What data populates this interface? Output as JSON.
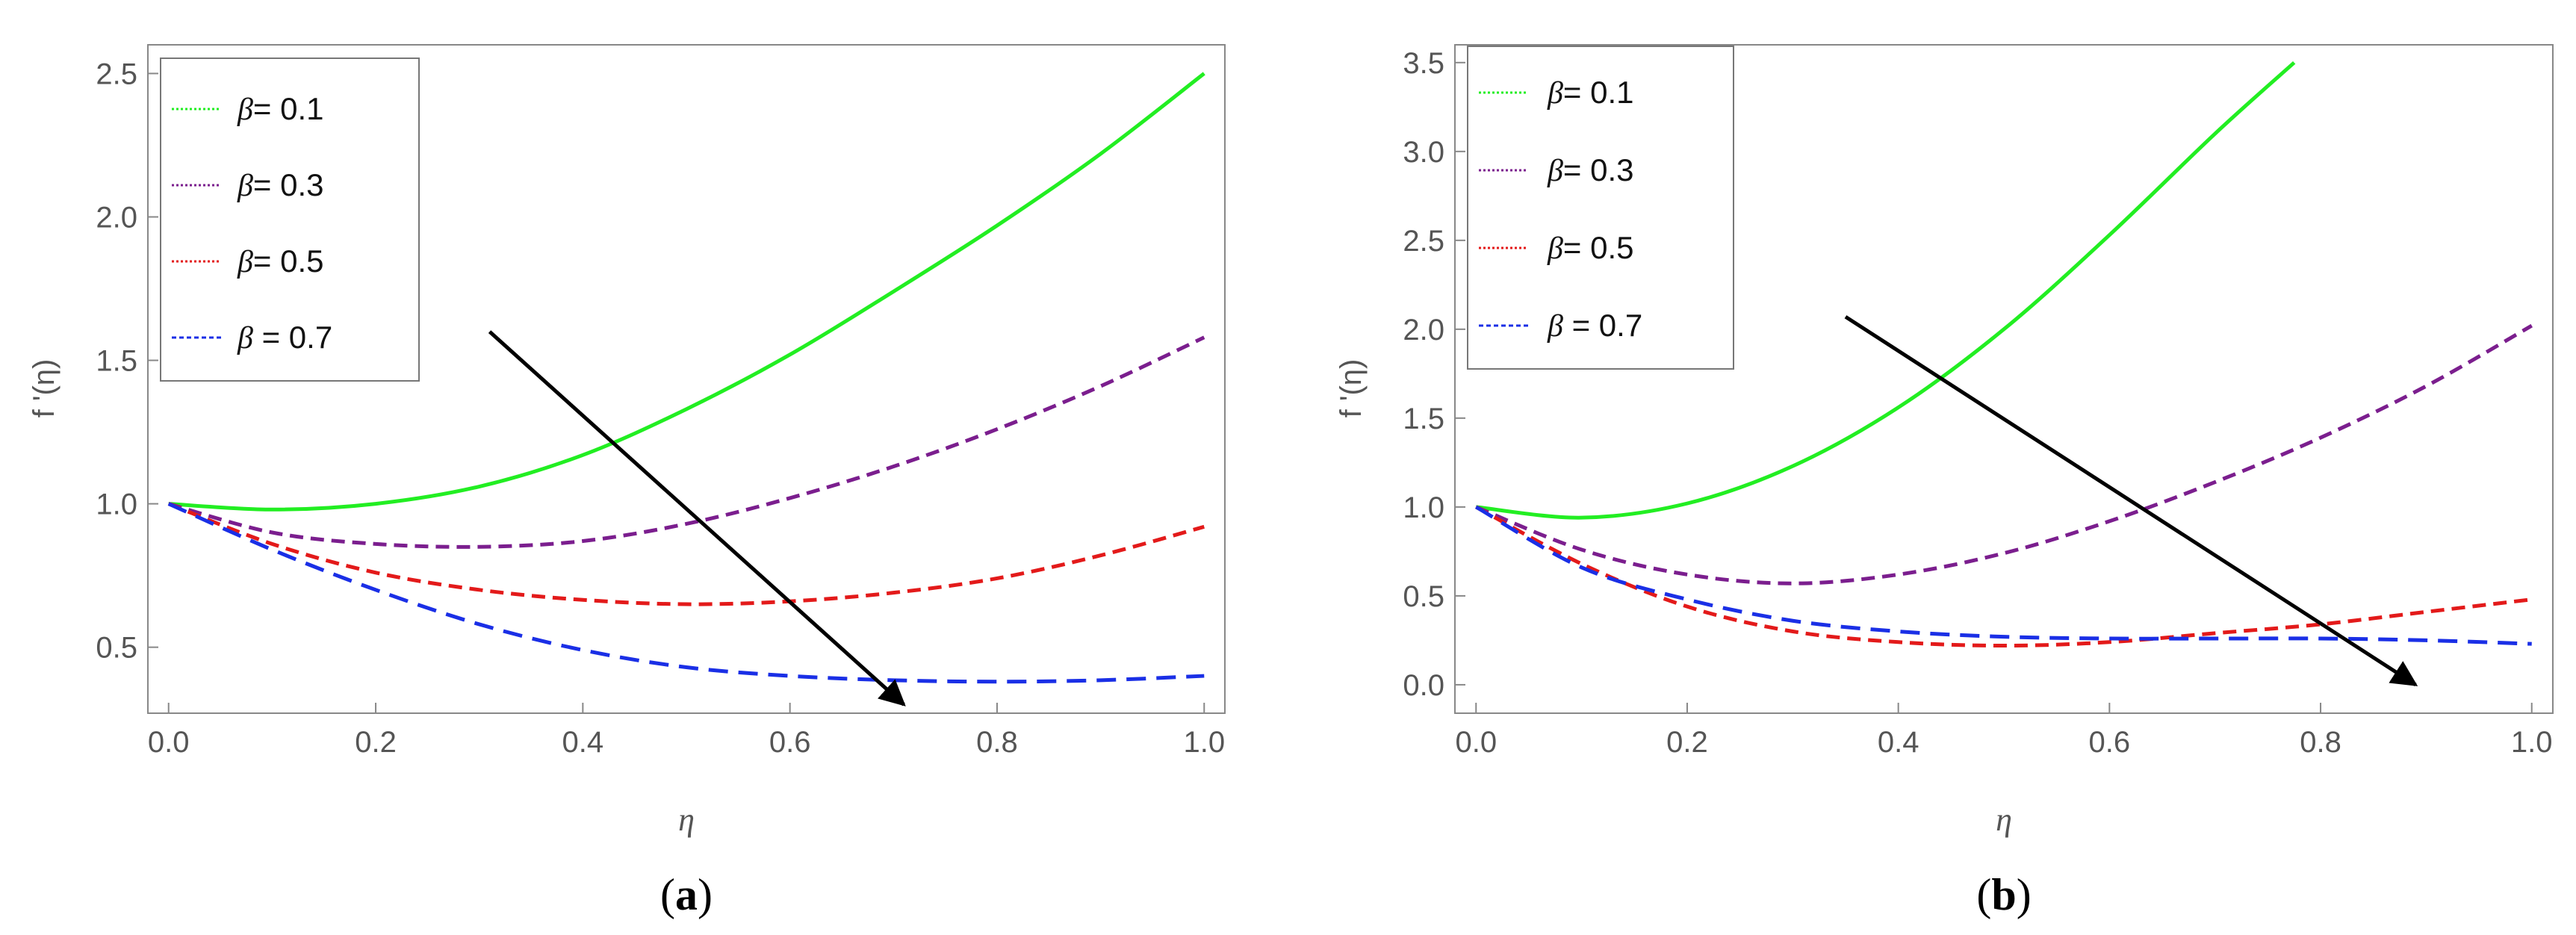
{
  "chart_data": [
    {
      "type": "line",
      "panel_label": "a",
      "xlabel": "η",
      "ylabel": "f '(η)",
      "xlim": [
        -0.02,
        1.02
      ],
      "ylim": [
        0.27,
        2.6
      ],
      "xticks": [
        0.0,
        0.2,
        0.4,
        0.6,
        0.8,
        1.0
      ],
      "xtick_labels": [
        "0.0",
        "0.2",
        "0.4",
        "0.6",
        "0.8",
        "1.0"
      ],
      "yticks": [
        0.5,
        1.0,
        1.5,
        2.0,
        2.5
      ],
      "ytick_labels": [
        "0.5",
        "1.0",
        "1.5",
        "2.0",
        "2.5"
      ],
      "legend": {
        "location": "top-left",
        "entries": [
          {
            "symbol": "β",
            "text": "= 0.1"
          },
          {
            "symbol": "β",
            "text": "= 0.3"
          },
          {
            "symbol": "β",
            "text": "= 0.5"
          },
          {
            "symbol": "β",
            "text": " = 0.7"
          }
        ]
      },
      "series": [
        {
          "name": "β= 0.1",
          "color": "#22ee22",
          "style": "solid",
          "x": [
            0,
            0.1,
            0.2,
            0.3,
            0.4,
            0.5,
            0.6,
            0.7,
            0.8,
            0.9,
            1.0
          ],
          "y": [
            1.0,
            0.98,
            1.0,
            1.06,
            1.17,
            1.33,
            1.52,
            1.74,
            1.97,
            2.22,
            2.5
          ]
        },
        {
          "name": "β= 0.3",
          "color": "#7b1e8e",
          "style": "dashed",
          "x": [
            0,
            0.1,
            0.2,
            0.3,
            0.4,
            0.5,
            0.6,
            0.7,
            0.8,
            0.9,
            1.0
          ],
          "y": [
            1.0,
            0.9,
            0.86,
            0.85,
            0.87,
            0.93,
            1.02,
            1.13,
            1.26,
            1.41,
            1.58
          ]
        },
        {
          "name": "β= 0.5",
          "color": "#e31a1a",
          "style": "dashed",
          "x": [
            0,
            0.1,
            0.2,
            0.3,
            0.4,
            0.5,
            0.6,
            0.7,
            0.8,
            0.9,
            1.0
          ],
          "y": [
            1.0,
            0.86,
            0.76,
            0.7,
            0.665,
            0.65,
            0.66,
            0.69,
            0.74,
            0.82,
            0.92
          ]
        },
        {
          "name": "β = 0.7",
          "color": "#1a2fe6",
          "style": "dashed",
          "x": [
            0,
            0.1,
            0.2,
            0.3,
            0.4,
            0.5,
            0.6,
            0.7,
            0.8,
            0.9,
            1.0
          ],
          "y": [
            1.0,
            0.84,
            0.7,
            0.58,
            0.49,
            0.43,
            0.4,
            0.385,
            0.38,
            0.385,
            0.4
          ]
        }
      ],
      "arrow": {
        "from": [
          0.31,
          1.6
        ],
        "to": [
          0.71,
          0.3
        ]
      }
    },
    {
      "type": "line",
      "panel_label": "b",
      "xlabel": "η",
      "ylabel": "f '(η)",
      "xlim": [
        -0.02,
        1.02
      ],
      "ylim": [
        -0.16,
        3.6
      ],
      "xticks": [
        0.0,
        0.2,
        0.4,
        0.6,
        0.8,
        1.0
      ],
      "xtick_labels": [
        "0.0",
        "0.2",
        "0.4",
        "0.6",
        "0.8",
        "1.0"
      ],
      "yticks": [
        0.0,
        0.5,
        1.0,
        1.5,
        2.0,
        2.5,
        3.0,
        3.5
      ],
      "ytick_labels": [
        "0.0",
        "0.5",
        "1.0",
        "1.5",
        "2.0",
        "2.5",
        "3.0",
        "3.5"
      ],
      "legend": {
        "location": "top-left",
        "entries": [
          {
            "symbol": "β",
            "text": "= 0.1"
          },
          {
            "symbol": "β",
            "text": "= 0.3"
          },
          {
            "symbol": "β",
            "text": "= 0.5"
          },
          {
            "symbol": "β",
            "text": " = 0.7"
          }
        ]
      },
      "series": [
        {
          "name": "β= 0.1",
          "color": "#22ee22",
          "style": "solid",
          "x": [
            0,
            0.1,
            0.2,
            0.3,
            0.4,
            0.5,
            0.6,
            0.7,
            0.775
          ],
          "y": [
            1.0,
            0.94,
            1.02,
            1.23,
            1.56,
            2.0,
            2.53,
            3.1,
            3.5
          ]
        },
        {
          "name": "β= 0.3",
          "color": "#7b1e8e",
          "style": "dashed",
          "x": [
            0,
            0.1,
            0.2,
            0.3,
            0.4,
            0.5,
            0.6,
            0.7,
            0.8,
            0.9,
            1.0
          ],
          "y": [
            1.0,
            0.76,
            0.62,
            0.57,
            0.62,
            0.74,
            0.92,
            1.14,
            1.39,
            1.68,
            2.02
          ]
        },
        {
          "name": "β= 0.5",
          "color": "#e31a1a",
          "style": "dashed",
          "x": [
            0,
            0.1,
            0.2,
            0.3,
            0.4,
            0.5,
            0.6,
            0.7,
            0.8,
            0.9,
            1.0
          ],
          "y": [
            1.0,
            0.68,
            0.44,
            0.3,
            0.24,
            0.22,
            0.24,
            0.29,
            0.34,
            0.41,
            0.48
          ]
        },
        {
          "name": "β = 0.7",
          "color": "#1a2fe6",
          "style": "dashed",
          "x": [
            0,
            0.1,
            0.2,
            0.3,
            0.4,
            0.5,
            0.6,
            0.7,
            0.8,
            0.9,
            1.0
          ],
          "y": [
            1.0,
            0.66,
            0.48,
            0.36,
            0.3,
            0.27,
            0.26,
            0.26,
            0.26,
            0.25,
            0.23
          ]
        }
      ],
      "arrow": {
        "from": [
          0.35,
          2.07
        ],
        "to": [
          0.89,
          0.0
        ]
      }
    }
  ]
}
